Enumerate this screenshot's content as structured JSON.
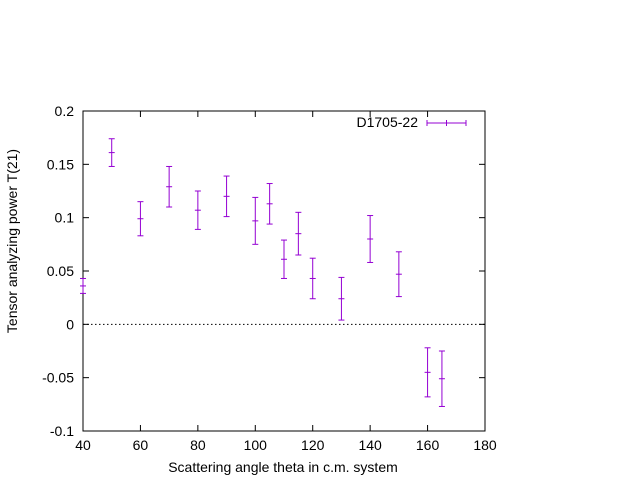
{
  "chart_data": {
    "type": "scatter",
    "xlabel": "Scattering angle theta in c.m. system",
    "ylabel": "Tensor analyzing power T(21)",
    "xlim": [
      40,
      180
    ],
    "ylim": [
      -0.1,
      0.2
    ],
    "x_ticks": [
      40,
      60,
      80,
      100,
      120,
      140,
      160,
      180
    ],
    "y_ticks": [
      -0.1,
      -0.05,
      0,
      0.05,
      0.1,
      0.15,
      0.2
    ],
    "x_tick_labels": [
      "40",
      "60",
      "80",
      "100",
      "120",
      "140",
      "160",
      "180"
    ],
    "y_tick_labels": [
      "-0.1",
      "-0.05",
      "0",
      "0.05",
      "0.1",
      "0.15",
      "0.2"
    ],
    "grid": false,
    "zero_line": true,
    "legend_position": "top-right",
    "series": [
      {
        "name": "D1705-22",
        "color": "#9400d3",
        "errorbars": true,
        "points": [
          {
            "x": 40,
            "y": 0.036,
            "err": 0.007
          },
          {
            "x": 50,
            "y": 0.161,
            "err": 0.013
          },
          {
            "x": 60,
            "y": 0.099,
            "err": 0.016
          },
          {
            "x": 70,
            "y": 0.129,
            "err": 0.019
          },
          {
            "x": 80,
            "y": 0.107,
            "err": 0.018
          },
          {
            "x": 90,
            "y": 0.12,
            "err": 0.019
          },
          {
            "x": 100,
            "y": 0.097,
            "err": 0.022
          },
          {
            "x": 105,
            "y": 0.113,
            "err": 0.019
          },
          {
            "x": 110,
            "y": 0.061,
            "err": 0.018
          },
          {
            "x": 115,
            "y": 0.085,
            "err": 0.02
          },
          {
            "x": 120,
            "y": 0.043,
            "err": 0.019
          },
          {
            "x": 130,
            "y": 0.024,
            "err": 0.02
          },
          {
            "x": 140,
            "y": 0.08,
            "err": 0.022
          },
          {
            "x": 150,
            "y": 0.047,
            "err": 0.021
          },
          {
            "x": 160,
            "y": -0.045,
            "err": 0.023
          },
          {
            "x": 165,
            "y": -0.051,
            "err": 0.026
          }
        ]
      }
    ]
  }
}
